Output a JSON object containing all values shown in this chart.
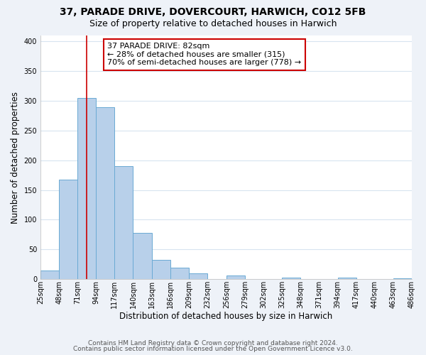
{
  "title": "37, PARADE DRIVE, DOVERCOURT, HARWICH, CO12 5FB",
  "subtitle": "Size of property relative to detached houses in Harwich",
  "xlabel": "Distribution of detached houses by size in Harwich",
  "ylabel": "Number of detached properties",
  "bin_edges": [
    25,
    48,
    71,
    94,
    117,
    140,
    163,
    186,
    209,
    232,
    256,
    279,
    302,
    325,
    348,
    371,
    394,
    417,
    440,
    463,
    486
  ],
  "bar_heights": [
    15,
    167,
    305,
    289,
    190,
    78,
    32,
    19,
    10,
    0,
    6,
    0,
    0,
    3,
    0,
    0,
    3,
    0,
    0,
    2
  ],
  "bar_color": "#b8d0ea",
  "bar_edge_color": "#6aaad4",
  "vline_x": 82,
  "vline_color": "#cc0000",
  "annotation_text_line1": "37 PARADE DRIVE: 82sqm",
  "annotation_text_line2": "← 28% of detached houses are smaller (315)",
  "annotation_text_line3": "70% of semi-detached houses are larger (778) →",
  "annotation_box_color": "#cc0000",
  "annotation_box_bg": "#ffffff",
  "ylim": [
    0,
    410
  ],
  "xlim_left": 25,
  "xlim_right": 486,
  "tick_labels": [
    "25sqm",
    "48sqm",
    "71sqm",
    "94sqm",
    "117sqm",
    "140sqm",
    "163sqm",
    "186sqm",
    "209sqm",
    "232sqm",
    "256sqm",
    "279sqm",
    "302sqm",
    "325sqm",
    "348sqm",
    "371sqm",
    "394sqm",
    "417sqm",
    "440sqm",
    "463sqm",
    "486sqm"
  ],
  "yticks": [
    0,
    50,
    100,
    150,
    200,
    250,
    300,
    350,
    400
  ],
  "footer_line1": "Contains HM Land Registry data © Crown copyright and database right 2024.",
  "footer_line2": "Contains public sector information licensed under the Open Government Licence v3.0.",
  "plot_bg_color": "#ffffff",
  "fig_bg_color": "#eef2f8",
  "grid_color": "#d8e4f0",
  "title_fontsize": 10,
  "subtitle_fontsize": 9,
  "axis_label_fontsize": 8.5,
  "tick_fontsize": 7,
  "annotation_fontsize": 8,
  "footer_fontsize": 6.5
}
